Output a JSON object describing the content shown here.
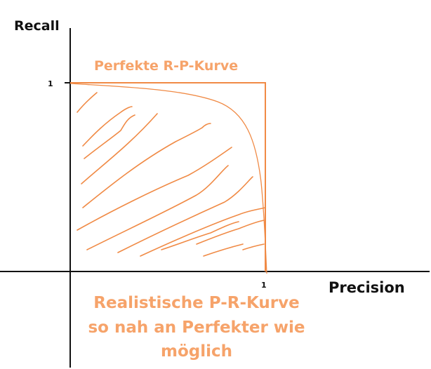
{
  "axes": {
    "y_label": "Recall",
    "x_label": "Precision",
    "y_tick": "1",
    "x_tick": "1"
  },
  "annotations": {
    "perfect_curve_label": "Perfekte R-P-Kurve",
    "realistic_line1": "Realistische P-R-Kurve",
    "realistic_line2": "so nah an Perfekter wie",
    "realistic_line3": "möglich"
  },
  "colors": {
    "axis": "#111111",
    "accent": "#f08a45",
    "accent_text": "#f6a36a"
  }
}
